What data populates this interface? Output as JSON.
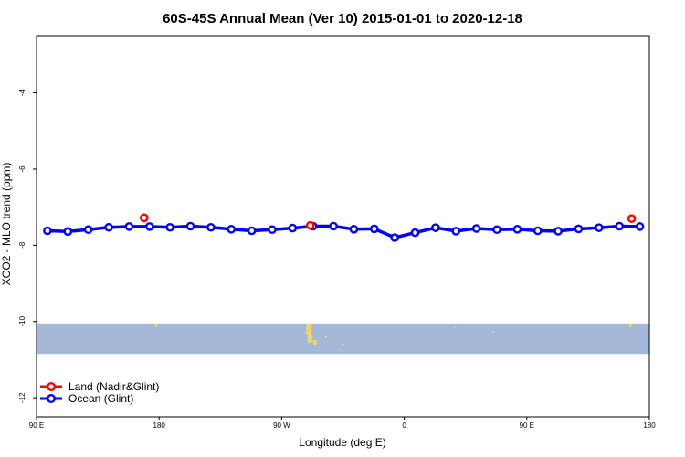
{
  "chart_data": {
    "type": "line",
    "title": "60S-45S Annual Mean (Ver 10)   2015-01-01 to 2020-12-18",
    "xlabel": "Longitude (deg E)",
    "ylabel": "XCO2 - MLO trend (ppm)",
    "xlim": [
      90,
      540
    ],
    "ylim": [
      -12.5,
      -2.5
    ],
    "x_ticks": [
      {
        "value": 90,
        "label": "90 E"
      },
      {
        "value": 180,
        "label": "180"
      },
      {
        "value": 270,
        "label": "90 W"
      },
      {
        "value": 360,
        "label": "0"
      },
      {
        "value": 450,
        "label": "90 E"
      },
      {
        "value": 540,
        "label": "180"
      }
    ],
    "y_ticks": [
      {
        "value": -4,
        "label": "-4"
      },
      {
        "value": -6,
        "label": "-6"
      },
      {
        "value": -8,
        "label": "-8"
      },
      {
        "value": -10,
        "label": "-10"
      },
      {
        "value": -12,
        "label": "-12"
      }
    ],
    "series": [
      {
        "name": "Land (Nadir&Glint)",
        "color": "#ff0000",
        "line": false,
        "points": [
          [
            169,
            -7.28
          ],
          [
            291,
            -7.48
          ],
          [
            527,
            -7.3
          ]
        ]
      },
      {
        "name": "Ocean (Glint)",
        "color": "#0000ff",
        "line": true,
        "points": [
          [
            98,
            -7.62
          ],
          [
            113,
            -7.64
          ],
          [
            128,
            -7.59
          ],
          [
            143,
            -7.53
          ],
          [
            158,
            -7.51
          ],
          [
            173,
            -7.51
          ],
          [
            188,
            -7.53
          ],
          [
            203,
            -7.5
          ],
          [
            218,
            -7.53
          ],
          [
            233,
            -7.58
          ],
          [
            248,
            -7.62
          ],
          [
            263,
            -7.59
          ],
          [
            278,
            -7.55
          ],
          [
            293,
            -7.5
          ],
          [
            308,
            -7.5
          ],
          [
            323,
            -7.58
          ],
          [
            338,
            -7.57
          ],
          [
            353,
            -7.8
          ],
          [
            368,
            -7.67
          ],
          [
            383,
            -7.54
          ],
          [
            398,
            -7.63
          ],
          [
            413,
            -7.56
          ],
          [
            428,
            -7.59
          ],
          [
            443,
            -7.58
          ],
          [
            458,
            -7.62
          ],
          [
            473,
            -7.63
          ],
          [
            488,
            -7.57
          ],
          [
            503,
            -7.54
          ],
          [
            518,
            -7.5
          ],
          [
            533,
            -7.51
          ]
        ]
      }
    ],
    "band": {
      "y_top": -10.05,
      "y_bottom": -10.85,
      "color": "#a4b9d8"
    },
    "land_color": "#f5d36a",
    "legend_position": "bottom-left",
    "grid": false
  }
}
